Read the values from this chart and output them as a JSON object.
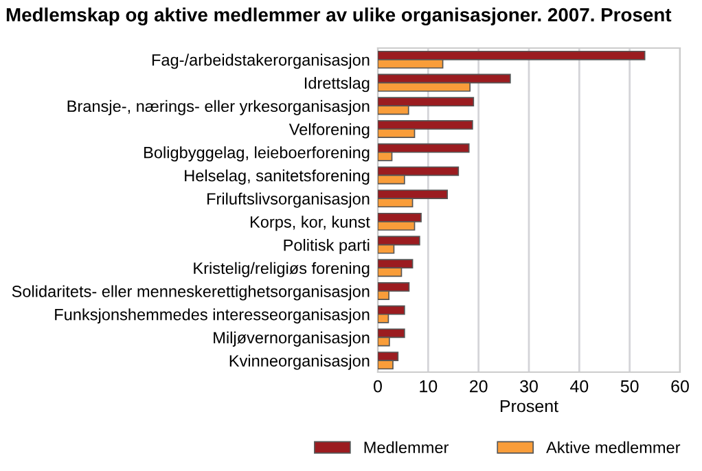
{
  "chart_data": {
    "type": "bar",
    "orientation": "horizontal",
    "title": "Medlemskap og aktive medlemmer av ulike organisasjoner. 2007. Prosent",
    "xlabel": "Prosent",
    "categories": [
      "Fag-/arbeidstakerorganisasjon",
      "Idrettslag",
      "Bransje-, nærings- eller yrkesorganisasjon",
      "Velforening",
      "Boligbyggelag, leieboerforening",
      "Helselag, sanitetsforening",
      "Friluftslivsorganisasjon",
      "Korps, kor, kunst",
      "Politisk parti",
      "Kristelig/religiøs forening",
      "Solidaritets- eller menneskerettighetsorganisasjon",
      "Funksjonshemmedes interesseorganisasjon",
      "Miljøvernorganisasjon",
      "Kvinneorganisasjon"
    ],
    "series": [
      {
        "name": "Medlemmer",
        "color": "#9b1c20",
        "values": [
          53,
          26.3,
          19,
          18.8,
          18.1,
          16,
          13.8,
          8.6,
          8.3,
          6.9,
          6.2,
          5.3,
          5.3,
          4.0
        ]
      },
      {
        "name": "Aktive medlemmer",
        "color": "#f99d3a",
        "values": [
          12.9,
          18.3,
          6.1,
          7.3,
          2.8,
          5.3,
          6.9,
          7.3,
          3.2,
          4.7,
          2.2,
          2.1,
          2.3,
          3.0
        ]
      }
    ],
    "xlim": [
      0,
      60
    ],
    "xticks": [
      0,
      10,
      20,
      30,
      40,
      50,
      60
    ],
    "grid": "x",
    "legend": "bottom"
  }
}
